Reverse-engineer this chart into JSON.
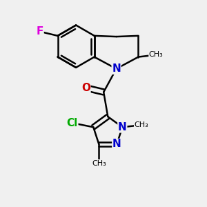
{
  "background_color": "#f0f0f0",
  "bond_color": "#000000",
  "bond_width": 1.8,
  "atom_colors": {
    "F": "#dd00dd",
    "N": "#0000cc",
    "O": "#cc0000",
    "Cl": "#00aa00",
    "C": "#000000"
  },
  "figsize": [
    3.0,
    3.0
  ],
  "dpi": 100,
  "xlim": [
    -2.0,
    2.2
  ],
  "ylim": [
    -2.8,
    2.0
  ]
}
